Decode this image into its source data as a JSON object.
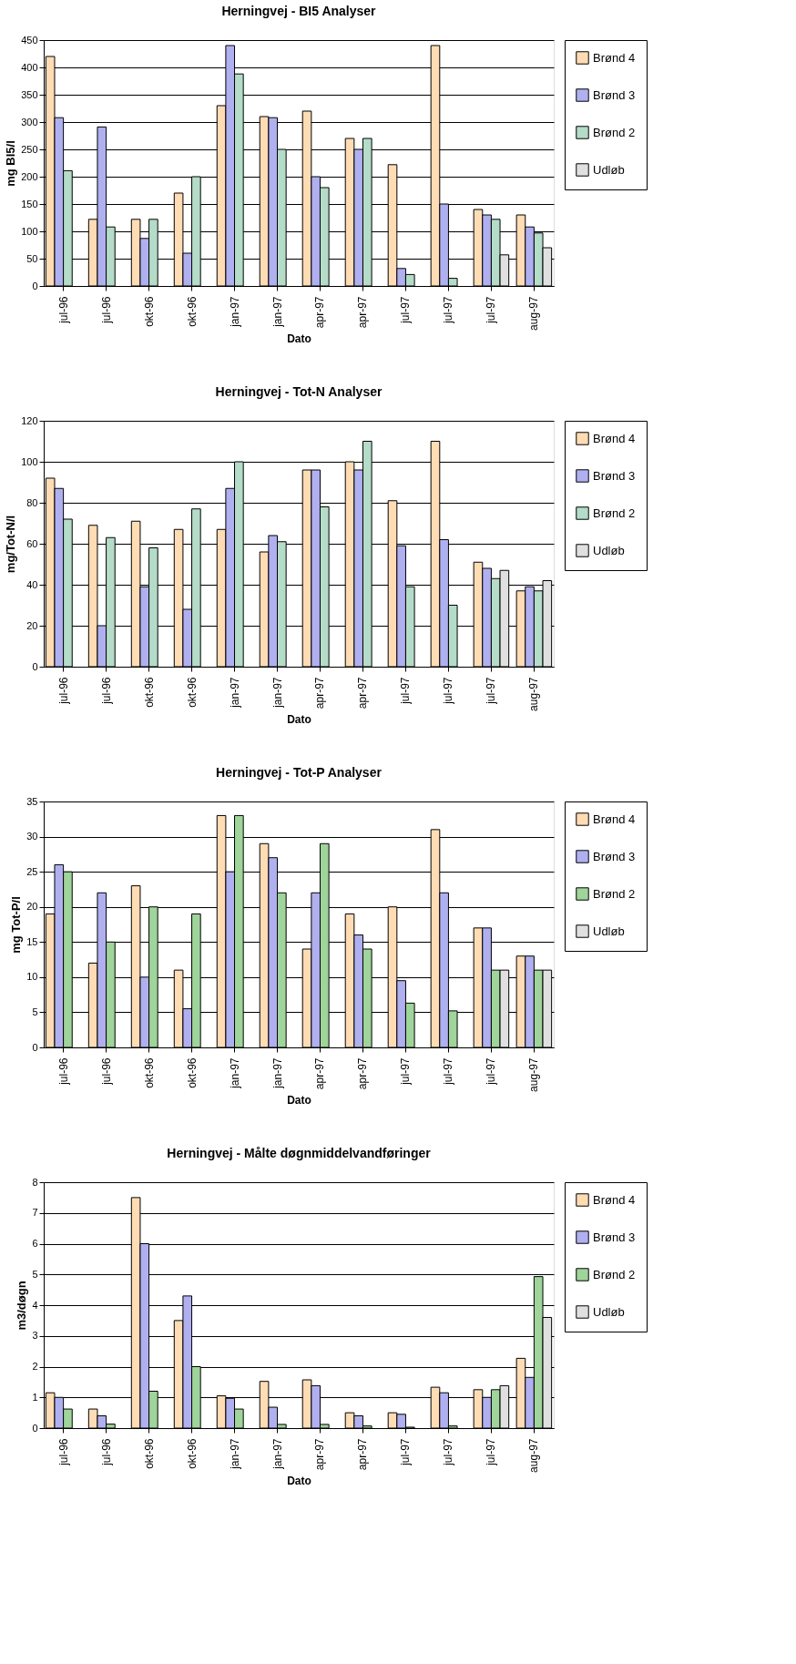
{
  "chart_data": [
    {
      "type": "bar",
      "title": "Herningvej - BI5 Analyser",
      "xlabel": "Dato",
      "ylabel": "mg BI5/l",
      "categories": [
        "jul-96",
        "jul-96",
        "okt-96",
        "okt-96",
        "jan-97",
        "jan-97",
        "apr-97",
        "apr-97",
        "jul-97",
        "jul-97",
        "jul-97",
        "aug-97"
      ],
      "ylim": [
        0,
        450
      ],
      "yticks": [
        0,
        50,
        100,
        150,
        200,
        250,
        300,
        350,
        400,
        450
      ],
      "grid": "y",
      "legend": "right",
      "series": [
        {
          "name": "Brønd 4",
          "color": "#ffdcb4",
          "values": [
            420,
            122,
            122,
            170,
            330,
            310,
            320,
            270,
            222,
            440,
            140,
            130
          ]
        },
        {
          "name": "Brønd 3",
          "color": "#b0b0f0",
          "values": [
            308,
            291,
            87,
            60,
            440,
            308,
            200,
            250,
            32,
            150,
            130,
            108
          ]
        },
        {
          "name": "Brønd 2",
          "color": "#b4dcc8",
          "values": [
            211,
            108,
            122,
            200,
            388,
            250,
            180,
            270,
            21,
            14,
            122,
            97
          ]
        },
        {
          "name": "Udløb",
          "color": "#e0e0e0",
          "values": [
            null,
            null,
            null,
            null,
            null,
            null,
            null,
            null,
            null,
            null,
            57,
            70
          ]
        }
      ]
    },
    {
      "type": "bar",
      "title": "Herningvej - Tot-N Analyser",
      "xlabel": "Dato",
      "ylabel": "mg/Tot-N/l",
      "categories": [
        "jul-96",
        "jul-96",
        "okt-96",
        "okt-96",
        "jan-97",
        "jan-97",
        "apr-97",
        "apr-97",
        "jul-97",
        "jul-97",
        "jul-97",
        "aug-97"
      ],
      "ylim": [
        0,
        120
      ],
      "yticks": [
        0,
        20,
        40,
        60,
        80,
        100,
        120
      ],
      "grid": "y",
      "legend": "right",
      "series": [
        {
          "name": "Brønd 4",
          "color": "#ffdcb4",
          "values": [
            92,
            69,
            71,
            67,
            67,
            56,
            96,
            100,
            81,
            110,
            51,
            37
          ]
        },
        {
          "name": "Brønd 3",
          "color": "#b0b0f0",
          "values": [
            87,
            20,
            39,
            28,
            87,
            64,
            96,
            96,
            59,
            62,
            48,
            39
          ]
        },
        {
          "name": "Brønd 2",
          "color": "#b4dcc8",
          "values": [
            72,
            63,
            58,
            77,
            100,
            61,
            78,
            110,
            39,
            30,
            43,
            37
          ]
        },
        {
          "name": "Udløb",
          "color": "#e0e0e0",
          "values": [
            null,
            null,
            null,
            null,
            null,
            null,
            null,
            null,
            null,
            null,
            47,
            42
          ]
        }
      ]
    },
    {
      "type": "bar",
      "title": "Herningvej - Tot-P Analyser",
      "xlabel": "Dato",
      "ylabel": "mg Tot-P/l",
      "categories": [
        "jul-96",
        "jul-96",
        "okt-96",
        "okt-96",
        "jan-97",
        "jan-97",
        "apr-97",
        "apr-97",
        "jul-97",
        "jul-97",
        "jul-97",
        "aug-97"
      ],
      "ylim": [
        0,
        35
      ],
      "yticks": [
        0,
        5,
        10,
        15,
        20,
        25,
        30,
        35
      ],
      "grid": "y",
      "legend": "right",
      "series": [
        {
          "name": "Brønd 4",
          "color": "#ffdcb4",
          "values": [
            19,
            12,
            23,
            11,
            33,
            29,
            14,
            19,
            20,
            31,
            17,
            13
          ]
        },
        {
          "name": "Brønd 3",
          "color": "#b0b0f0",
          "values": [
            26,
            22,
            10,
            5.5,
            25,
            27,
            22,
            16,
            9.5,
            22,
            17,
            13
          ]
        },
        {
          "name": "Brønd 2",
          "color": "#9fd49a",
          "values": [
            25,
            15,
            20,
            19,
            33,
            22,
            29,
            14,
            6.3,
            5.2,
            11,
            11
          ]
        },
        {
          "name": "Udløb",
          "color": "#e0e0e0",
          "values": [
            null,
            null,
            null,
            null,
            null,
            null,
            null,
            null,
            null,
            null,
            11,
            11
          ]
        }
      ]
    },
    {
      "type": "bar",
      "title": "Herningvej - Målte døgnmiddelvandføringer",
      "xlabel": "Dato",
      "ylabel": "m3/døgn",
      "categories": [
        "jul-96",
        "jul-96",
        "okt-96",
        "okt-96",
        "jan-97",
        "jan-97",
        "apr-97",
        "apr-97",
        "jul-97",
        "jul-97",
        "jul-97",
        "aug-97"
      ],
      "ylim": [
        0,
        8
      ],
      "yticks": [
        0,
        1,
        2,
        3,
        4,
        5,
        6,
        7,
        8
      ],
      "grid": "y",
      "legend": "right",
      "series": [
        {
          "name": "Brønd 4",
          "color": "#ffdcb4",
          "values": [
            1.15,
            0.62,
            7.5,
            3.5,
            1.05,
            1.52,
            1.57,
            0.5,
            0.5,
            1.33,
            1.25,
            2.27
          ]
        },
        {
          "name": "Brønd 3",
          "color": "#b0b0f0",
          "values": [
            1.0,
            0.4,
            6.0,
            4.3,
            0.97,
            0.68,
            1.38,
            0.4,
            0.45,
            1.15,
            1.0,
            1.65
          ]
        },
        {
          "name": "Brønd 2",
          "color": "#9fd49a",
          "values": [
            0.62,
            0.13,
            1.2,
            2.0,
            0.62,
            0.12,
            0.12,
            0.07,
            0.03,
            0.07,
            1.25,
            4.93
          ]
        },
        {
          "name": "Udløb",
          "color": "#e0e0e0",
          "values": [
            null,
            null,
            null,
            null,
            null,
            null,
            null,
            null,
            null,
            null,
            1.38,
            3.6
          ]
        }
      ]
    }
  ]
}
